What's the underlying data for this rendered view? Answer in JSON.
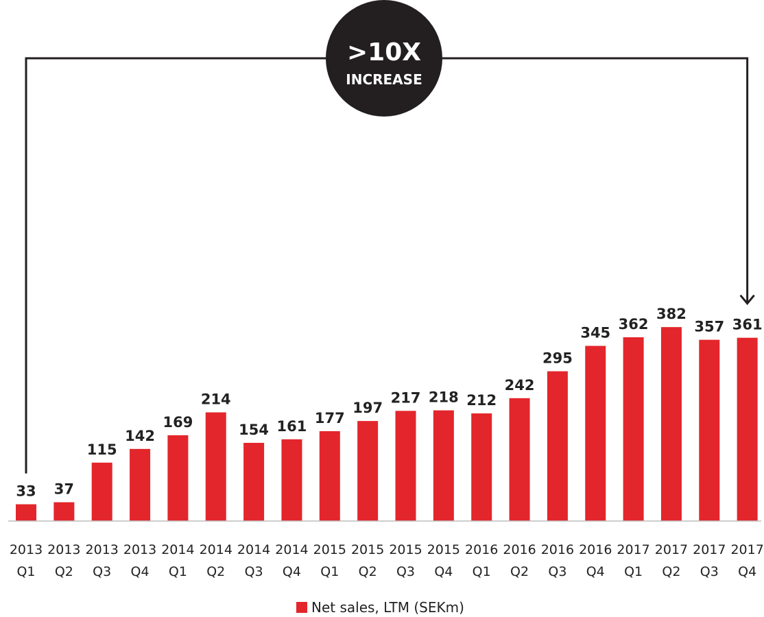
{
  "chart_data": {
    "type": "bar",
    "categories": [
      [
        "2013",
        "Q1"
      ],
      [
        "2013",
        "Q2"
      ],
      [
        "2013",
        "Q3"
      ],
      [
        "2013",
        "Q4"
      ],
      [
        "2014",
        "Q1"
      ],
      [
        "2014",
        "Q2"
      ],
      [
        "2014",
        "Q3"
      ],
      [
        "2014",
        "Q4"
      ],
      [
        "2015",
        "Q1"
      ],
      [
        "2015",
        "Q2"
      ],
      [
        "2015",
        "Q3"
      ],
      [
        "2015",
        "Q4"
      ],
      [
        "2016",
        "Q1"
      ],
      [
        "2016",
        "Q2"
      ],
      [
        "2016",
        "Q3"
      ],
      [
        "2016",
        "Q4"
      ],
      [
        "2017",
        "Q1"
      ],
      [
        "2017",
        "Q2"
      ],
      [
        "2017",
        "Q3"
      ],
      [
        "2017",
        "Q4"
      ]
    ],
    "series": [
      {
        "name": "Net sales, LTM (SEKm)",
        "color": "#e3262b",
        "values": [
          33,
          37,
          115,
          142,
          169,
          214,
          154,
          161,
          177,
          197,
          217,
          218,
          212,
          242,
          295,
          345,
          362,
          382,
          357,
          361
        ]
      }
    ],
    "ylim": [
      0,
      400
    ],
    "grid": false,
    "legend": "bottom-center",
    "annotation": {
      "line1": ">10X",
      "line2": "INCREASE",
      "from_category_index": 0,
      "to_category_index": 19
    },
    "text_color": "#222222",
    "callout_color": "#231f20"
  }
}
